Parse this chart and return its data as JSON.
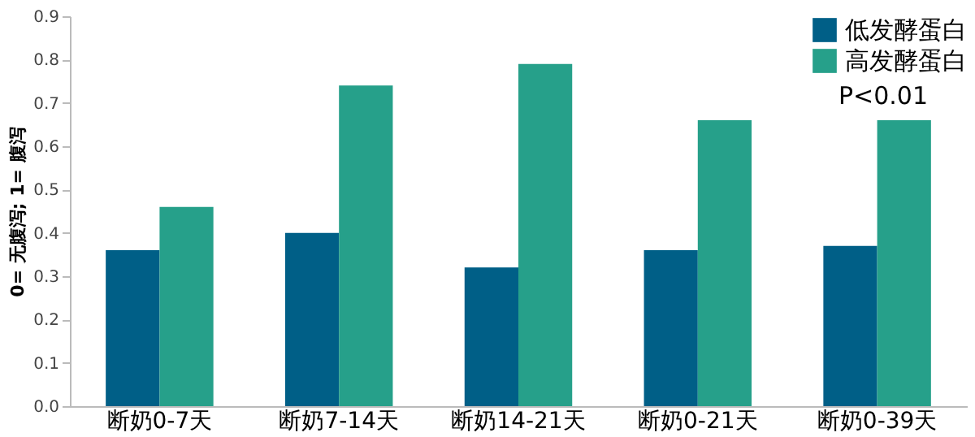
{
  "chart_data": {
    "type": "bar",
    "ylabel": "0= 无腹泻; 1= 腹泻",
    "categories": [
      "断奶0-7天",
      "断奶7-14天",
      "断奶14-21天",
      "断奶0-21天",
      "断奶0-39天"
    ],
    "series": [
      {
        "name": "低发酵蛋白",
        "color": "#005f87",
        "values": [
          0.36,
          0.4,
          0.32,
          0.36,
          0.37
        ]
      },
      {
        "name": "高发酵蛋白",
        "color": "#26a08a",
        "values": [
          0.46,
          0.74,
          0.79,
          0.66,
          0.66
        ]
      }
    ],
    "ylim": [
      0,
      0.9
    ],
    "yticks": [
      {
        "value": 0,
        "label": "0.0"
      },
      0.1,
      0.2,
      0.3,
      0.4,
      0.5,
      0.6,
      0.7,
      0.8,
      0.9
    ],
    "grid": false,
    "legend": "top right",
    "annotations": [
      "P<0.01"
    ]
  }
}
